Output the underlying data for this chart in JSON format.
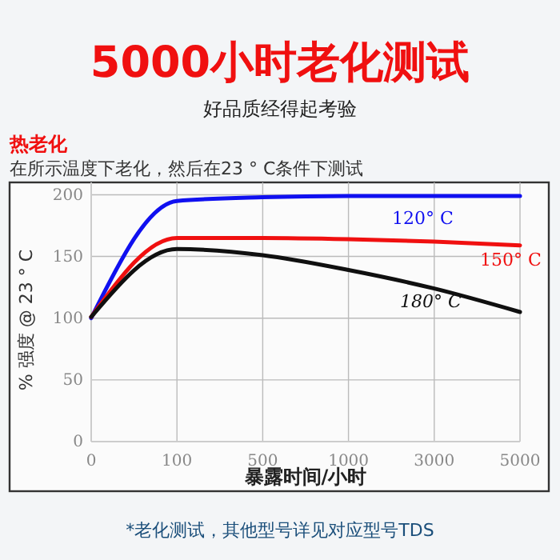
{
  "chart_data": {
    "type": "line",
    "title": "5000小时老化测试",
    "subtitle": "好品质经得起考验",
    "xlabel": "暴露时间/小时",
    "ylabel": "% 强度 @ 23 ° C",
    "annotations": [
      "热老化",
      "在所示温度下老化，然后在23 ° C条件下测试",
      "*老化测试，其他型号详见对应型号TDS"
    ],
    "categories": [
      "0",
      "100",
      "500",
      "1000",
      "3000",
      "5000"
    ],
    "ylim": [
      0,
      210
    ],
    "yticks": [
      0,
      50,
      100,
      150,
      200
    ],
    "grid": true,
    "line_style": "solid",
    "marker": "none",
    "series": [
      {
        "name": "120° C",
        "color": "#1010f0",
        "values": [
          100,
          195,
          198,
          199,
          199,
          199
        ]
      },
      {
        "name": "150° C",
        "color": "#f01010",
        "values": [
          101,
          165,
          165,
          164,
          162,
          159
        ]
      },
      {
        "name": "180° C",
        "color": "#101010",
        "values": [
          101,
          156,
          151,
          139,
          124,
          105
        ]
      }
    ]
  }
}
